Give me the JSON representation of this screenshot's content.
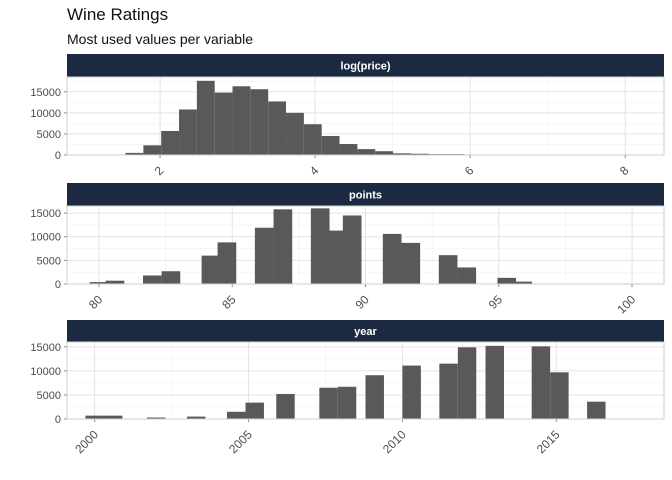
{
  "title": "Wine Ratings",
  "subtitle": "Most used values per variable",
  "colors": {
    "strip": "#1b2a41",
    "bar": "#595959",
    "grid": "#e3e3e3",
    "panel_border": "#cfcfcf"
  },
  "chart_data": [
    {
      "type": "bar",
      "facet": "log(price)",
      "xlim": [
        0.8,
        8.5
      ],
      "ylim": [
        0,
        18500
      ],
      "x_ticks": [
        2,
        4,
        6,
        8
      ],
      "x_tick_labels": [
        "2",
        "4",
        "6",
        "8"
      ],
      "y_ticks": [
        0,
        5000,
        10000,
        15000
      ],
      "y_tick_labels": [
        "0",
        "5000",
        "10000",
        "15000"
      ],
      "bin_width": 0.23,
      "x": [
        1.67,
        1.9,
        2.13,
        2.36,
        2.59,
        2.82,
        3.05,
        3.28,
        3.51,
        3.74,
        3.97,
        4.2,
        4.43,
        4.66,
        4.89,
        5.12,
        5.35,
        5.58,
        5.81,
        6.04
      ],
      "values": [
        500,
        2300,
        5700,
        10800,
        17600,
        14800,
        16300,
        15600,
        12700,
        10000,
        7300,
        4500,
        2600,
        1400,
        900,
        400,
        300,
        200,
        200,
        100
      ]
    },
    {
      "type": "bar",
      "facet": "points",
      "xlim": [
        78.8,
        101.2
      ],
      "ylim": [
        0,
        16500
      ],
      "x_ticks": [
        80,
        85,
        90,
        95,
        100
      ],
      "x_tick_labels": [
        "80",
        "85",
        "90",
        "95",
        "100"
      ],
      "y_ticks": [
        0,
        5000,
        10000,
        15000
      ],
      "y_tick_labels": [
        "0",
        "5000",
        "10000",
        "15000"
      ],
      "bin_width": 0.7,
      "x": [
        80,
        80.6,
        82,
        82.7,
        84.2,
        84.8,
        86.2,
        86.9,
        88.3,
        88.9,
        89.5,
        91,
        91.7,
        93.1,
        93.8,
        95.3,
        95.9,
        97.4,
        100
      ],
      "values": [
        400,
        700,
        1800,
        2700,
        6000,
        8800,
        11900,
        15800,
        16000,
        11300,
        14500,
        10600,
        8700,
        6100,
        3500,
        1300,
        500,
        100,
        50
      ]
    },
    {
      "type": "bar",
      "facet": "year",
      "xlim": [
        1999.1,
        2018.5
      ],
      "ylim": [
        0,
        16000
      ],
      "x_ticks": [
        2000,
        2005,
        2010,
        2015
      ],
      "x_tick_labels": [
        "2000",
        "2005",
        "2010",
        "2015"
      ],
      "y_ticks": [
        0,
        5000,
        10000,
        15000
      ],
      "y_tick_labels": [
        "0",
        "5000",
        "10000",
        "15000"
      ],
      "bin_width": 0.6,
      "x": [
        2000,
        2000.6,
        2002,
        2003.3,
        2004.6,
        2005.2,
        2006.2,
        2007.6,
        2008.2,
        2009.1,
        2010.3,
        2011.5,
        2012.1,
        2013,
        2014.5,
        2015.1,
        2016.3
      ],
      "values": [
        700,
        700,
        300,
        500,
        1500,
        3400,
        5200,
        6500,
        6700,
        9100,
        11100,
        11500,
        14900,
        15200,
        15100,
        9700,
        3600
      ]
    }
  ]
}
